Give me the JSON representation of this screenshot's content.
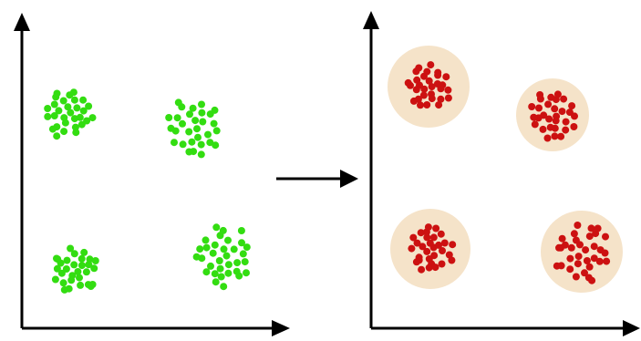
{
  "diagram": {
    "left_panel": {
      "point_color": "#33dd11",
      "clusters": [
        {
          "name": "top-left",
          "points": 30
        },
        {
          "name": "top-right",
          "points": 30
        },
        {
          "name": "bottom-left",
          "points": 30
        },
        {
          "name": "bottom-right",
          "points": 33
        }
      ]
    },
    "transition_arrow": "right-arrow",
    "right_panel": {
      "point_color": "#cc1111",
      "halo_color": "#f5e3c9",
      "clusters": [
        {
          "name": "top-left",
          "points": 30
        },
        {
          "name": "top-right",
          "points": 30
        },
        {
          "name": "bottom-left",
          "points": 30
        },
        {
          "name": "bottom-right",
          "points": 33
        }
      ]
    }
  }
}
